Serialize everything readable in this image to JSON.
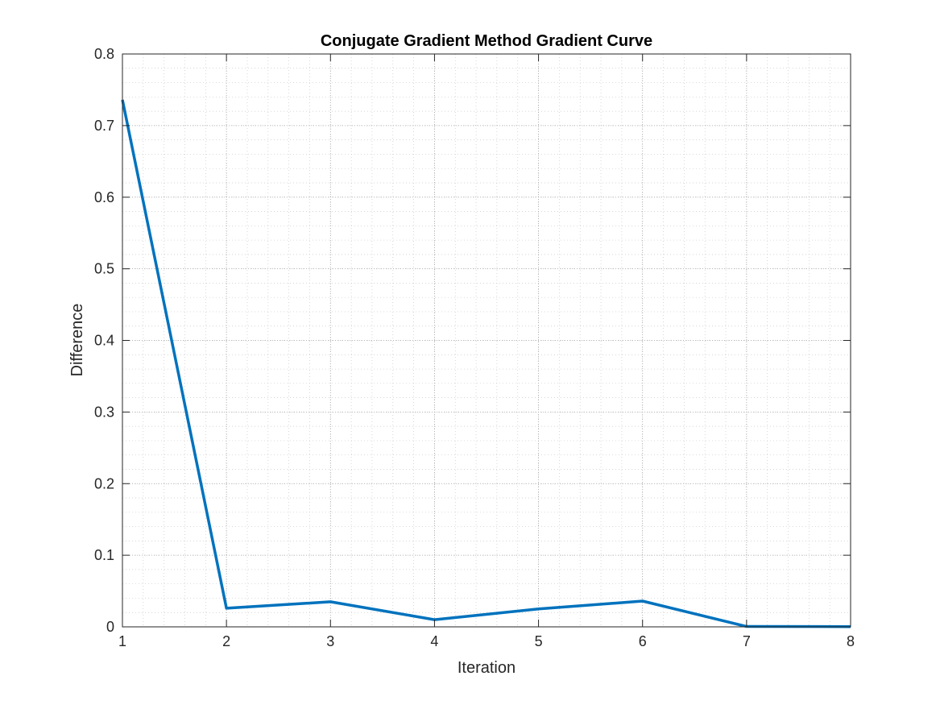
{
  "chart_data": {
    "type": "line",
    "title": "Conjugate Gradient Method Gradient Curve",
    "xlabel": "Iteration",
    "ylabel": "Difference",
    "xlim": [
      1,
      8
    ],
    "ylim": [
      0,
      0.8
    ],
    "x_ticks": [
      1,
      2,
      3,
      4,
      5,
      6,
      7,
      8
    ],
    "x_tick_labels": [
      "1",
      "2",
      "3",
      "4",
      "5",
      "6",
      "7",
      "8"
    ],
    "y_ticks": [
      0,
      0.1,
      0.2,
      0.3,
      0.4,
      0.5,
      0.6,
      0.7,
      0.8
    ],
    "y_tick_labels": [
      "0",
      "0.1",
      "0.2",
      "0.3",
      "0.4",
      "0.5",
      "0.6",
      "0.7",
      "0.8"
    ],
    "grid": true,
    "minor_grid": true,
    "legend": "none",
    "series": [
      {
        "x": [
          1,
          2,
          3,
          4,
          5,
          6,
          7,
          8
        ],
        "values": [
          0.736,
          0.026,
          0.035,
          0.01,
          0.025,
          0.036,
          0.0005,
          0.0003
        ],
        "color": "#0072BD"
      }
    ]
  }
}
